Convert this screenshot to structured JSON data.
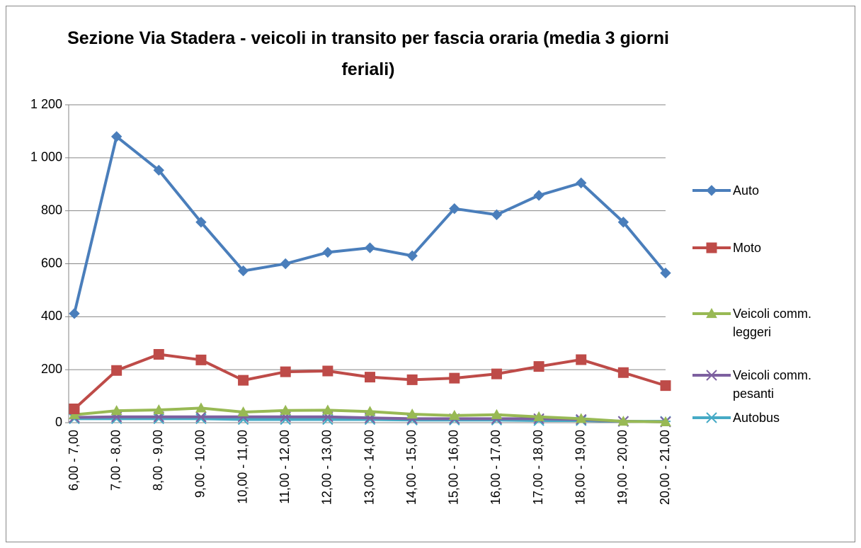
{
  "chart_data": {
    "type": "line",
    "title": "Sezione Via Stadera - veicoli in transito per fascia oraria (media 3 giorni feriali)",
    "categories": [
      "6,00 - 7,00",
      "7,00 - 8,00",
      "8,00 - 9,00",
      "9,00 - 10,00",
      "10,00 - 11,00",
      "11,00 - 12,00",
      "12,00 - 13,00",
      "13,00 - 14,00",
      "14,00 - 15,00",
      "15,00 - 16,00",
      "16,00 - 17,00",
      "17,00 - 18,00",
      "18,00 - 19,00",
      "19,00 - 20,00",
      "20,00 - 21,00"
    ],
    "series": [
      {
        "name": "Auto",
        "color": "#4a7ebb",
        "marker": "diamond",
        "values": [
          412,
          1080,
          953,
          757,
          573,
          600,
          643,
          660,
          630,
          808,
          785,
          858,
          905,
          757,
          565
        ]
      },
      {
        "name": "Moto",
        "color": "#be4b48",
        "marker": "square",
        "values": [
          52,
          197,
          258,
          237,
          160,
          192,
          195,
          172,
          162,
          168,
          184,
          212,
          238,
          189,
          140
        ]
      },
      {
        "name": "Veicoli comm. leggeri",
        "color": "#98b954",
        "marker": "triangle",
        "values": [
          30,
          45,
          48,
          55,
          40,
          46,
          47,
          42,
          32,
          27,
          30,
          22,
          15,
          5,
          3
        ]
      },
      {
        "name": "Veicoli comm. pesanti",
        "color": "#7d60a0",
        "marker": "x",
        "values": [
          20,
          22,
          22,
          22,
          22,
          22,
          22,
          18,
          15,
          15,
          15,
          15,
          12,
          5,
          3
        ]
      },
      {
        "name": "Autobus",
        "color": "#46aac5",
        "marker": "star",
        "values": [
          15,
          15,
          15,
          15,
          12,
          12,
          12,
          12,
          10,
          10,
          10,
          8,
          8,
          5,
          5
        ]
      }
    ],
    "ylim": [
      0,
      1200
    ],
    "yticks": [
      0,
      200,
      400,
      600,
      800,
      {
        "value": 1000,
        "label": "1 000"
      },
      {
        "value": 1200,
        "label": "1 200"
      }
    ],
    "grid": true,
    "legend": "right"
  }
}
